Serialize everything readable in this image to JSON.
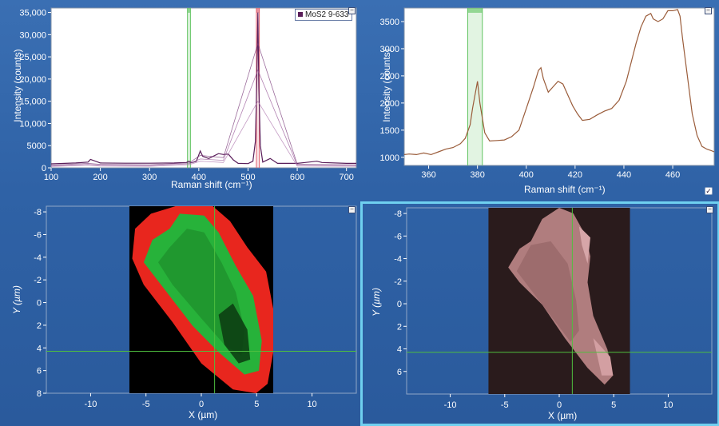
{
  "spectrum_full": {
    "ylabel": "Intensity (counts)",
    "xlabel": "Raman shift (cm⁻¹)",
    "legend": "MoS2 9-633",
    "minimize_label": "−"
  },
  "spectrum_zoom": {
    "ylabel": "Intensity (counts)",
    "xlabel": "Raman shift (cm⁻¹)",
    "minimize_label": "−",
    "checkbox_label": "✓"
  },
  "map_left": {
    "ylabel": "Y (µm)",
    "xlabel": "X (µm)",
    "minimize_label": "−"
  },
  "map_right": {
    "ylabel": "Y (µm)",
    "xlabel": "X (µm)",
    "minimize_label": "−"
  },
  "colors": {
    "spectrum_full_series": "#5a1e5a",
    "spectrum_zoom_series": "#9a5c3a",
    "band_marker": "#5fc35f",
    "band_marker_red": "#e06070",
    "map_green": "#27b23a",
    "map_red": "#e8261e",
    "selected_border": "#6fd0ef",
    "crosshair": "#4fbf3f"
  },
  "chart_data": [
    {
      "type": "line",
      "xlim": [
        100,
        720
      ],
      "ylim": [
        0,
        36000
      ],
      "xticks": [
        100,
        200,
        300,
        400,
        500,
        600,
        700
      ],
      "yticks": [
        0,
        5000,
        10000,
        15000,
        20000,
        25000,
        30000,
        35000
      ],
      "ytick_labels": [
        "0",
        "5000",
        "10,000",
        "15,000",
        "20,000",
        "25,000",
        "30,000",
        "35,000"
      ],
      "bands": [
        {
          "from": 377,
          "to": 383,
          "color": "green"
        },
        {
          "from": 517,
          "to": 523,
          "color": "red"
        }
      ],
      "series": [
        {
          "name": "MoS2 9-633",
          "x": [
            100,
            150,
            175,
            180,
            200,
            250,
            300,
            350,
            375,
            380,
            385,
            395,
            403,
            408,
            420,
            440,
            450,
            460,
            470,
            480,
            500,
            510,
            515,
            518,
            520,
            522,
            525,
            530,
            545,
            560,
            600,
            640,
            650,
            700,
            720
          ],
          "y": [
            900,
            1100,
            1300,
            1900,
            1100,
            1050,
            1050,
            1100,
            1200,
            1500,
            1150,
            1500,
            3800,
            2600,
            2100,
            3200,
            3000,
            3100,
            1800,
            1000,
            950,
            1500,
            6000,
            20000,
            35000,
            18000,
            5000,
            1300,
            2100,
            1000,
            1000,
            1500,
            1200,
            1000,
            1000
          ]
        },
        {
          "x": [
            100,
            175,
            200,
            300,
            380,
            403,
            450,
            520,
            600,
            720
          ],
          "y": [
            600,
            1000,
            800,
            700,
            1100,
            2800,
            2300,
            28000,
            800,
            700
          ]
        },
        {
          "x": [
            100,
            175,
            200,
            300,
            380,
            403,
            450,
            520,
            600,
            720
          ],
          "y": [
            400,
            800,
            600,
            500,
            900,
            2000,
            1700,
            22000,
            600,
            500
          ]
        },
        {
          "x": [
            100,
            175,
            200,
            300,
            380,
            403,
            450,
            520,
            600,
            720
          ],
          "y": [
            300,
            600,
            400,
            350,
            700,
            1500,
            1200,
            15000,
            400,
            350
          ]
        }
      ]
    },
    {
      "type": "line",
      "xlim": [
        350,
        477
      ],
      "ylim": [
        850,
        3750
      ],
      "xticks": [
        360,
        380,
        400,
        420,
        440,
        460
      ],
      "yticks": [
        1000,
        1500,
        2000,
        2500,
        3000,
        3500
      ],
      "bands": [
        {
          "from": 376,
          "to": 382,
          "color": "green"
        }
      ],
      "series": [
        {
          "x": [
            350,
            352,
            355,
            358,
            361,
            364,
            367,
            370,
            373,
            375,
            377,
            378,
            380,
            381,
            383,
            385,
            388,
            391,
            394,
            397,
            400,
            403,
            405,
            406,
            407,
            409,
            411,
            413,
            415,
            417,
            419,
            421,
            423,
            426,
            429,
            432,
            435,
            438,
            441,
            443,
            445,
            447,
            449,
            451,
            452,
            454,
            456,
            458,
            460,
            462,
            463,
            464,
            466,
            468,
            470,
            472,
            474,
            476,
            477
          ],
          "y": [
            1050,
            1060,
            1050,
            1080,
            1050,
            1100,
            1150,
            1180,
            1250,
            1350,
            1600,
            1900,
            2400,
            2000,
            1450,
            1300,
            1310,
            1320,
            1380,
            1500,
            1900,
            2300,
            2600,
            2650,
            2450,
            2200,
            2300,
            2400,
            2350,
            2150,
            1950,
            1800,
            1680,
            1700,
            1780,
            1850,
            1900,
            2050,
            2400,
            2750,
            3100,
            3400,
            3600,
            3650,
            3550,
            3500,
            3550,
            3700,
            3700,
            3720,
            3600,
            3200,
            2500,
            1800,
            1400,
            1200,
            1150,
            1120,
            1100
          ]
        }
      ]
    },
    {
      "type": "heatmap",
      "xlim": [
        -14,
        14
      ],
      "ylim": [
        8,
        -8.5
      ],
      "xticks": [
        -10,
        -5,
        0,
        5,
        10
      ],
      "yticks": [
        -8,
        -6,
        -4,
        -2,
        0,
        2,
        4,
        6,
        8
      ],
      "image_x_range": [
        -6.5,
        6.5
      ],
      "crosshair": {
        "x": 1.2,
        "y": 4.3
      }
    },
    {
      "type": "heatmap",
      "xlim": [
        -14,
        14
      ],
      "ylim": [
        8,
        -8.5
      ],
      "xticks": [
        -10,
        -5,
        0,
        5,
        10
      ],
      "yticks": [
        -8,
        -6,
        -4,
        -2,
        0,
        2,
        4,
        6
      ],
      "image_x_range": [
        -6.5,
        6.5
      ],
      "crosshair": {
        "x": 1.2,
        "y": 4.3
      }
    }
  ]
}
